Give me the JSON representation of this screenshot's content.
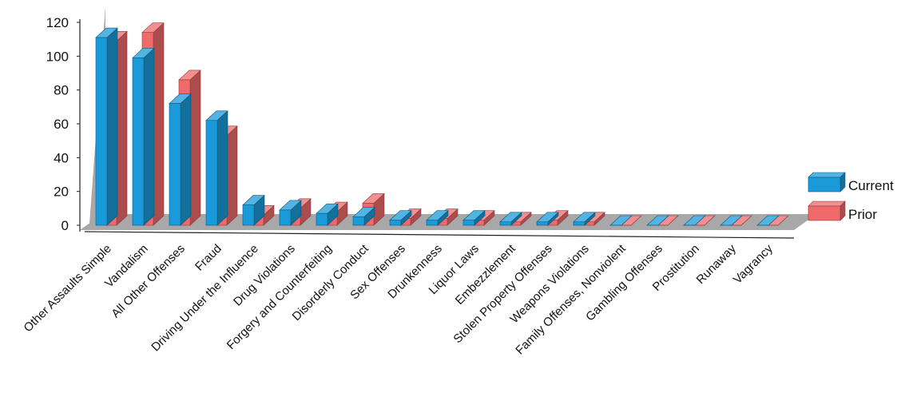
{
  "chart_data": {
    "type": "bar",
    "categories": [
      "Other Assaults Simple",
      "Vandalism",
      "All Other Offenses",
      "Fraud",
      "Driving Under the Influence",
      "Drug Violations",
      "Forgery and Counterfeiting",
      "Disorderly Conduct",
      "Sex Offenses",
      "Drunkenness",
      "Liquor Laws",
      "Embezzlement",
      "Stolen Property Offenses",
      "Weapons Violations",
      "Family Offenses, Nonviolent",
      "Gambling Offenses",
      "Prostitution",
      "Runaway",
      "Vagrancy"
    ],
    "series": [
      {
        "name": "Current",
        "color": "#1a9ad9",
        "values": [
          111,
          99,
          72,
          62,
          12,
          9,
          7,
          5,
          3,
          3,
          3,
          2,
          2,
          2,
          0,
          0,
          0,
          0,
          0
        ]
      },
      {
        "name": "Prior",
        "color": "#f06a6a",
        "values": [
          109,
          114,
          86,
          53,
          6,
          10,
          8,
          13,
          4,
          4,
          3,
          2,
          3,
          2,
          0,
          0,
          0,
          0,
          0
        ]
      }
    ],
    "title": "",
    "xlabel": "",
    "ylabel": "",
    "ylim": [
      0,
      120
    ],
    "yticks": [
      0,
      20,
      40,
      60,
      80,
      100,
      120
    ],
    "grid": false,
    "legend_position": "right",
    "three_d": true
  }
}
